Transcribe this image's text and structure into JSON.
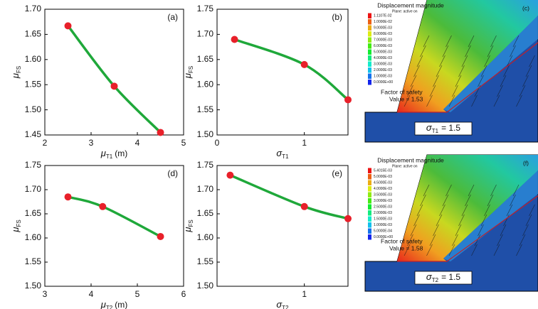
{
  "chart_data": [
    {
      "type": "line",
      "panel_label": "(a)",
      "xlabel": {
        "symbol": "μ",
        "sub": "T1",
        "unit": "(m)"
      },
      "ylabel": {
        "symbol": "μ",
        "sub": "FS"
      },
      "x": [
        2.5,
        3.5,
        4.5
      ],
      "series": [
        {
          "color": "#1fa83a",
          "marker_color": "#e8202a",
          "values": [
            1.667,
            1.547,
            1.455
          ]
        }
      ],
      "xlim": [
        2,
        5
      ],
      "xticks": [
        2,
        3,
        4,
        5
      ],
      "ylim": [
        1.45,
        1.7
      ],
      "yticks": [
        1.45,
        {
          "value": 1.5,
          "label": "1.50"
        },
        1.55,
        {
          "value": 1.6,
          "label": "1.60"
        },
        1.65,
        {
          "value": 1.7,
          "label": "1.70"
        }
      ]
    },
    {
      "type": "line",
      "panel_label": "(b)",
      "xlabel": {
        "symbol": "σ",
        "sub": "T1"
      },
      "ylabel": {
        "symbol": "μ",
        "sub": "FS"
      },
      "x": [
        0.2,
        1,
        1.5
      ],
      "series": [
        {
          "color": "#1fa83a",
          "marker_color": "#e8202a",
          "values": [
            1.69,
            1.64,
            1.57
          ]
        }
      ],
      "xlim": [
        0,
        1.5
      ],
      "xticks": [
        0,
        1
      ],
      "ylim": [
        1.5,
        1.75
      ],
      "yticks": [
        {
          "value": 1.5,
          "label": "1.50"
        },
        1.55,
        {
          "value": 1.6,
          "label": "1.60"
        },
        1.65,
        {
          "value": 1.7,
          "label": "1.70"
        },
        1.75
      ]
    },
    {
      "type": "line",
      "panel_label": "(d)",
      "xlabel": {
        "symbol": "μ",
        "sub": "T2",
        "unit": "(m)"
      },
      "ylabel": {
        "symbol": "μ",
        "sub": "FS"
      },
      "x": [
        3.5,
        4.25,
        5.5
      ],
      "series": [
        {
          "color": "#1fa83a",
          "marker_color": "#e8202a",
          "values": [
            1.685,
            1.665,
            1.603
          ]
        }
      ],
      "xlim": [
        3,
        6
      ],
      "xticks": [
        3,
        4,
        5,
        6
      ],
      "ylim": [
        1.5,
        1.75
      ],
      "yticks": [
        {
          "value": 1.5,
          "label": "1.50"
        },
        1.55,
        {
          "value": 1.6,
          "label": "1.60"
        },
        1.65,
        {
          "value": 1.7,
          "label": "1.70"
        },
        1.75
      ]
    },
    {
      "type": "line",
      "panel_label": "(e)",
      "xlabel": {
        "symbol": "σ",
        "sub": "T2"
      },
      "ylabel": {
        "symbol": "μ",
        "sub": "FS"
      },
      "x": [
        0.15,
        1,
        1.5
      ],
      "series": [
        {
          "color": "#1fa83a",
          "marker_color": "#e8202a",
          "values": [
            1.73,
            1.665,
            1.64
          ]
        }
      ],
      "xlim": [
        0,
        1.5
      ],
      "xticks": [
        1
      ],
      "ylim": [
        1.5,
        1.75
      ],
      "yticks": [
        {
          "value": 1.5,
          "label": "1.50"
        },
        1.55,
        {
          "value": 1.6,
          "label": "1.60"
        },
        1.65,
        {
          "value": 1.7,
          "label": "1.70"
        },
        1.75
      ]
    }
  ],
  "panels": [
    {
      "label": "(c)",
      "title": "Displacement magnitude",
      "subtitle": "Plane: active on",
      "legend": [
        "1.1107E-02",
        "1.0000E-02",
        "9.0000E-03",
        "8.0000E-03",
        "7.0000E-03",
        "6.0000E-03",
        "5.0000E-03",
        "4.0000E-03",
        "3.0000E-03",
        "2.0000E-03",
        "1.0000E-03",
        "0.0000E+00"
      ],
      "fos_title": "Factor of safety",
      "fos_value": "Value = 1.53",
      "caption": {
        "symbol": "σ",
        "sub": "T1",
        "text": "= 1.5"
      }
    },
    {
      "label": "(f)",
      "title": "Displacement magnitude",
      "subtitle": "Plane: active on",
      "legend": [
        "5.4015E-03",
        "5.0000E-03",
        "4.5000E-03",
        "4.0000E-03",
        "3.5000E-03",
        "3.0000E-03",
        "2.5000E-03",
        "2.0000E-03",
        "1.5000E-03",
        "1.0000E-03",
        "5.0000E-04",
        "0.0000E+00"
      ],
      "fos_title": "Factor of safety",
      "fos_value": "Value = 1.58",
      "caption": {
        "symbol": "σ",
        "sub": "T2",
        "text": "= 1.5"
      }
    }
  ]
}
